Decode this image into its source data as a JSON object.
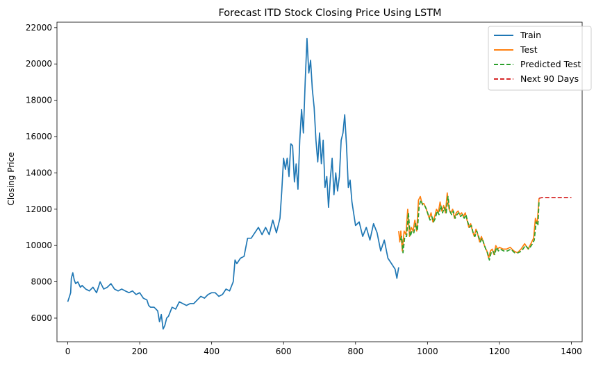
{
  "chart_data": {
    "type": "line",
    "title": "Forecast ITD Stock Closing Price Using LSTM",
    "xlabel": "",
    "ylabel": "Closing Price",
    "xlim": [
      -30,
      1430
    ],
    "ylim": [
      4700,
      22300
    ],
    "xticks": [
      0,
      200,
      400,
      600,
      800,
      1000,
      1200,
      1400
    ],
    "yticks": [
      6000,
      8000,
      10000,
      12000,
      14000,
      16000,
      18000,
      20000,
      22000
    ],
    "grid": false,
    "legend_position": "top-right",
    "series": [
      {
        "name": "Train",
        "color": "#1f77b4",
        "dash": "solid",
        "x": [
          0,
          5,
          8,
          10,
          14,
          18,
          22,
          28,
          35,
          40,
          50,
          60,
          70,
          80,
          90,
          100,
          110,
          120,
          130,
          140,
          150,
          160,
          170,
          180,
          190,
          200,
          210,
          220,
          225,
          230,
          240,
          250,
          255,
          260,
          265,
          270,
          275,
          280,
          290,
          300,
          310,
          320,
          330,
          340,
          350,
          360,
          370,
          380,
          390,
          400,
          410,
          420,
          430,
          440,
          450,
          460,
          465,
          470,
          480,
          490,
          500,
          510,
          520,
          530,
          540,
          550,
          560,
          570,
          580,
          590,
          595,
          600,
          605,
          610,
          615,
          620,
          625,
          630,
          635,
          640,
          645,
          650,
          655,
          660,
          665,
          670,
          675,
          680,
          685,
          690,
          695,
          700,
          705,
          710,
          715,
          720,
          725,
          730,
          735,
          740,
          745,
          750,
          755,
          760,
          765,
          770,
          775,
          780,
          785,
          790,
          800,
          810,
          820,
          830,
          840,
          850,
          860,
          870,
          880,
          890,
          900,
          910,
          915,
          920
        ],
        "values": [
          6900,
          7200,
          7400,
          8200,
          8500,
          8100,
          7900,
          8000,
          7700,
          7800,
          7600,
          7500,
          7700,
          7400,
          8000,
          7600,
          7700,
          7900,
          7600,
          7500,
          7600,
          7500,
          7400,
          7500,
          7300,
          7400,
          7100,
          7000,
          6700,
          6600,
          6600,
          6400,
          5800,
          6200,
          5400,
          5600,
          6000,
          6100,
          6600,
          6500,
          6900,
          6800,
          6700,
          6800,
          6800,
          7000,
          7200,
          7100,
          7300,
          7400,
          7400,
          7200,
          7300,
          7600,
          7500,
          8000,
          9200,
          9000,
          9300,
          9400,
          10400,
          10400,
          10700,
          11000,
          10600,
          11000,
          10600,
          11400,
          10700,
          11500,
          13000,
          14800,
          14200,
          14800,
          13800,
          15600,
          15500,
          13500,
          14500,
          13100,
          15800,
          17500,
          16200,
          19000,
          21400,
          19500,
          20200,
          18600,
          17600,
          15800,
          14600,
          16200,
          14500,
          15800,
          13200,
          13800,
          12100,
          13700,
          14800,
          12800,
          14000,
          13000,
          13800,
          15800,
          16200,
          17200,
          15500,
          13200,
          13600,
          12400,
          11100,
          11300,
          10500,
          11000,
          10300,
          11200,
          10700,
          9700,
          10300,
          9300,
          9000,
          8700,
          8200,
          8800
        ]
      },
      {
        "name": "Test",
        "color": "#ff7f0e",
        "dash": "solid",
        "x": [
          920,
          923,
          926,
          930,
          935,
          940,
          945,
          950,
          955,
          960,
          965,
          970,
          975,
          980,
          985,
          990,
          995,
          1000,
          1005,
          1010,
          1015,
          1020,
          1025,
          1030,
          1035,
          1040,
          1045,
          1050,
          1055,
          1060,
          1065,
          1070,
          1075,
          1080,
          1085,
          1090,
          1095,
          1100,
          1105,
          1110,
          1115,
          1120,
          1125,
          1130,
          1135,
          1140,
          1145,
          1150,
          1155,
          1160,
          1165,
          1170,
          1175,
          1180,
          1185,
          1190,
          1195,
          1200,
          1210,
          1220,
          1230,
          1240,
          1250,
          1260,
          1270,
          1280,
          1290,
          1295,
          1300,
          1305,
          1310
        ],
        "values": [
          10800,
          10200,
          10800,
          9700,
          10800,
          10600,
          12000,
          10500,
          11000,
          10800,
          11400,
          10800,
          12500,
          12700,
          12300,
          12300,
          12100,
          11800,
          11500,
          11800,
          11300,
          11600,
          12000,
          11800,
          12400,
          11900,
          12200,
          11800,
          12900,
          12000,
          11800,
          12000,
          11500,
          11800,
          11900,
          11700,
          11800,
          11600,
          11800,
          11400,
          11000,
          11200,
          10800,
          10500,
          10900,
          10600,
          10200,
          10500,
          10200,
          9900,
          9700,
          9300,
          9700,
          9800,
          9500,
          10000,
          9800,
          9900,
          9800,
          9800,
          9900,
          9700,
          9600,
          9800,
          10100,
          9800,
          10200,
          10400,
          11500,
          11200,
          12600
        ]
      },
      {
        "name": "Predicted Test",
        "color": "#2ca02c",
        "dash": "dashed",
        "x": [
          925,
          928,
          932,
          937,
          942,
          947,
          952,
          957,
          962,
          967,
          972,
          977,
          982,
          987,
          992,
          997,
          1002,
          1007,
          1012,
          1017,
          1022,
          1027,
          1032,
          1037,
          1042,
          1047,
          1052,
          1057,
          1062,
          1067,
          1072,
          1077,
          1082,
          1087,
          1092,
          1097,
          1102,
          1107,
          1112,
          1117,
          1122,
          1127,
          1132,
          1137,
          1142,
          1147,
          1152,
          1157,
          1162,
          1167,
          1172,
          1177,
          1182,
          1187,
          1192,
          1197,
          1202,
          1212,
          1222,
          1232,
          1242,
          1252,
          1262,
          1272,
          1282,
          1292,
          1297,
          1302,
          1307,
          1310
        ],
        "values": [
          10300,
          10500,
          9600,
          10500,
          10500,
          11800,
          10500,
          10800,
          10700,
          11200,
          10800,
          12200,
          12500,
          12200,
          12200,
          12000,
          11700,
          11400,
          11600,
          11300,
          11500,
          11900,
          11700,
          12200,
          11800,
          12100,
          11800,
          12700,
          11900,
          11700,
          11900,
          11500,
          11700,
          11800,
          11600,
          11700,
          11500,
          11700,
          11300,
          11000,
          11100,
          10700,
          10500,
          10800,
          10500,
          10200,
          10400,
          10100,
          9800,
          9600,
          9200,
          9600,
          9700,
          9500,
          9900,
          9700,
          9800,
          9700,
          9700,
          9800,
          9600,
          9600,
          9700,
          10000,
          9800,
          10100,
          10300,
          11300,
          11100,
          12400
        ]
      },
      {
        "name": "Next 90 Days",
        "color": "#d62728",
        "dash": "dashed",
        "x": [
          1310,
          1320,
          1340,
          1360,
          1380,
          1400
        ],
        "values": [
          12600,
          12650,
          12640,
          12640,
          12640,
          12650
        ]
      }
    ]
  }
}
